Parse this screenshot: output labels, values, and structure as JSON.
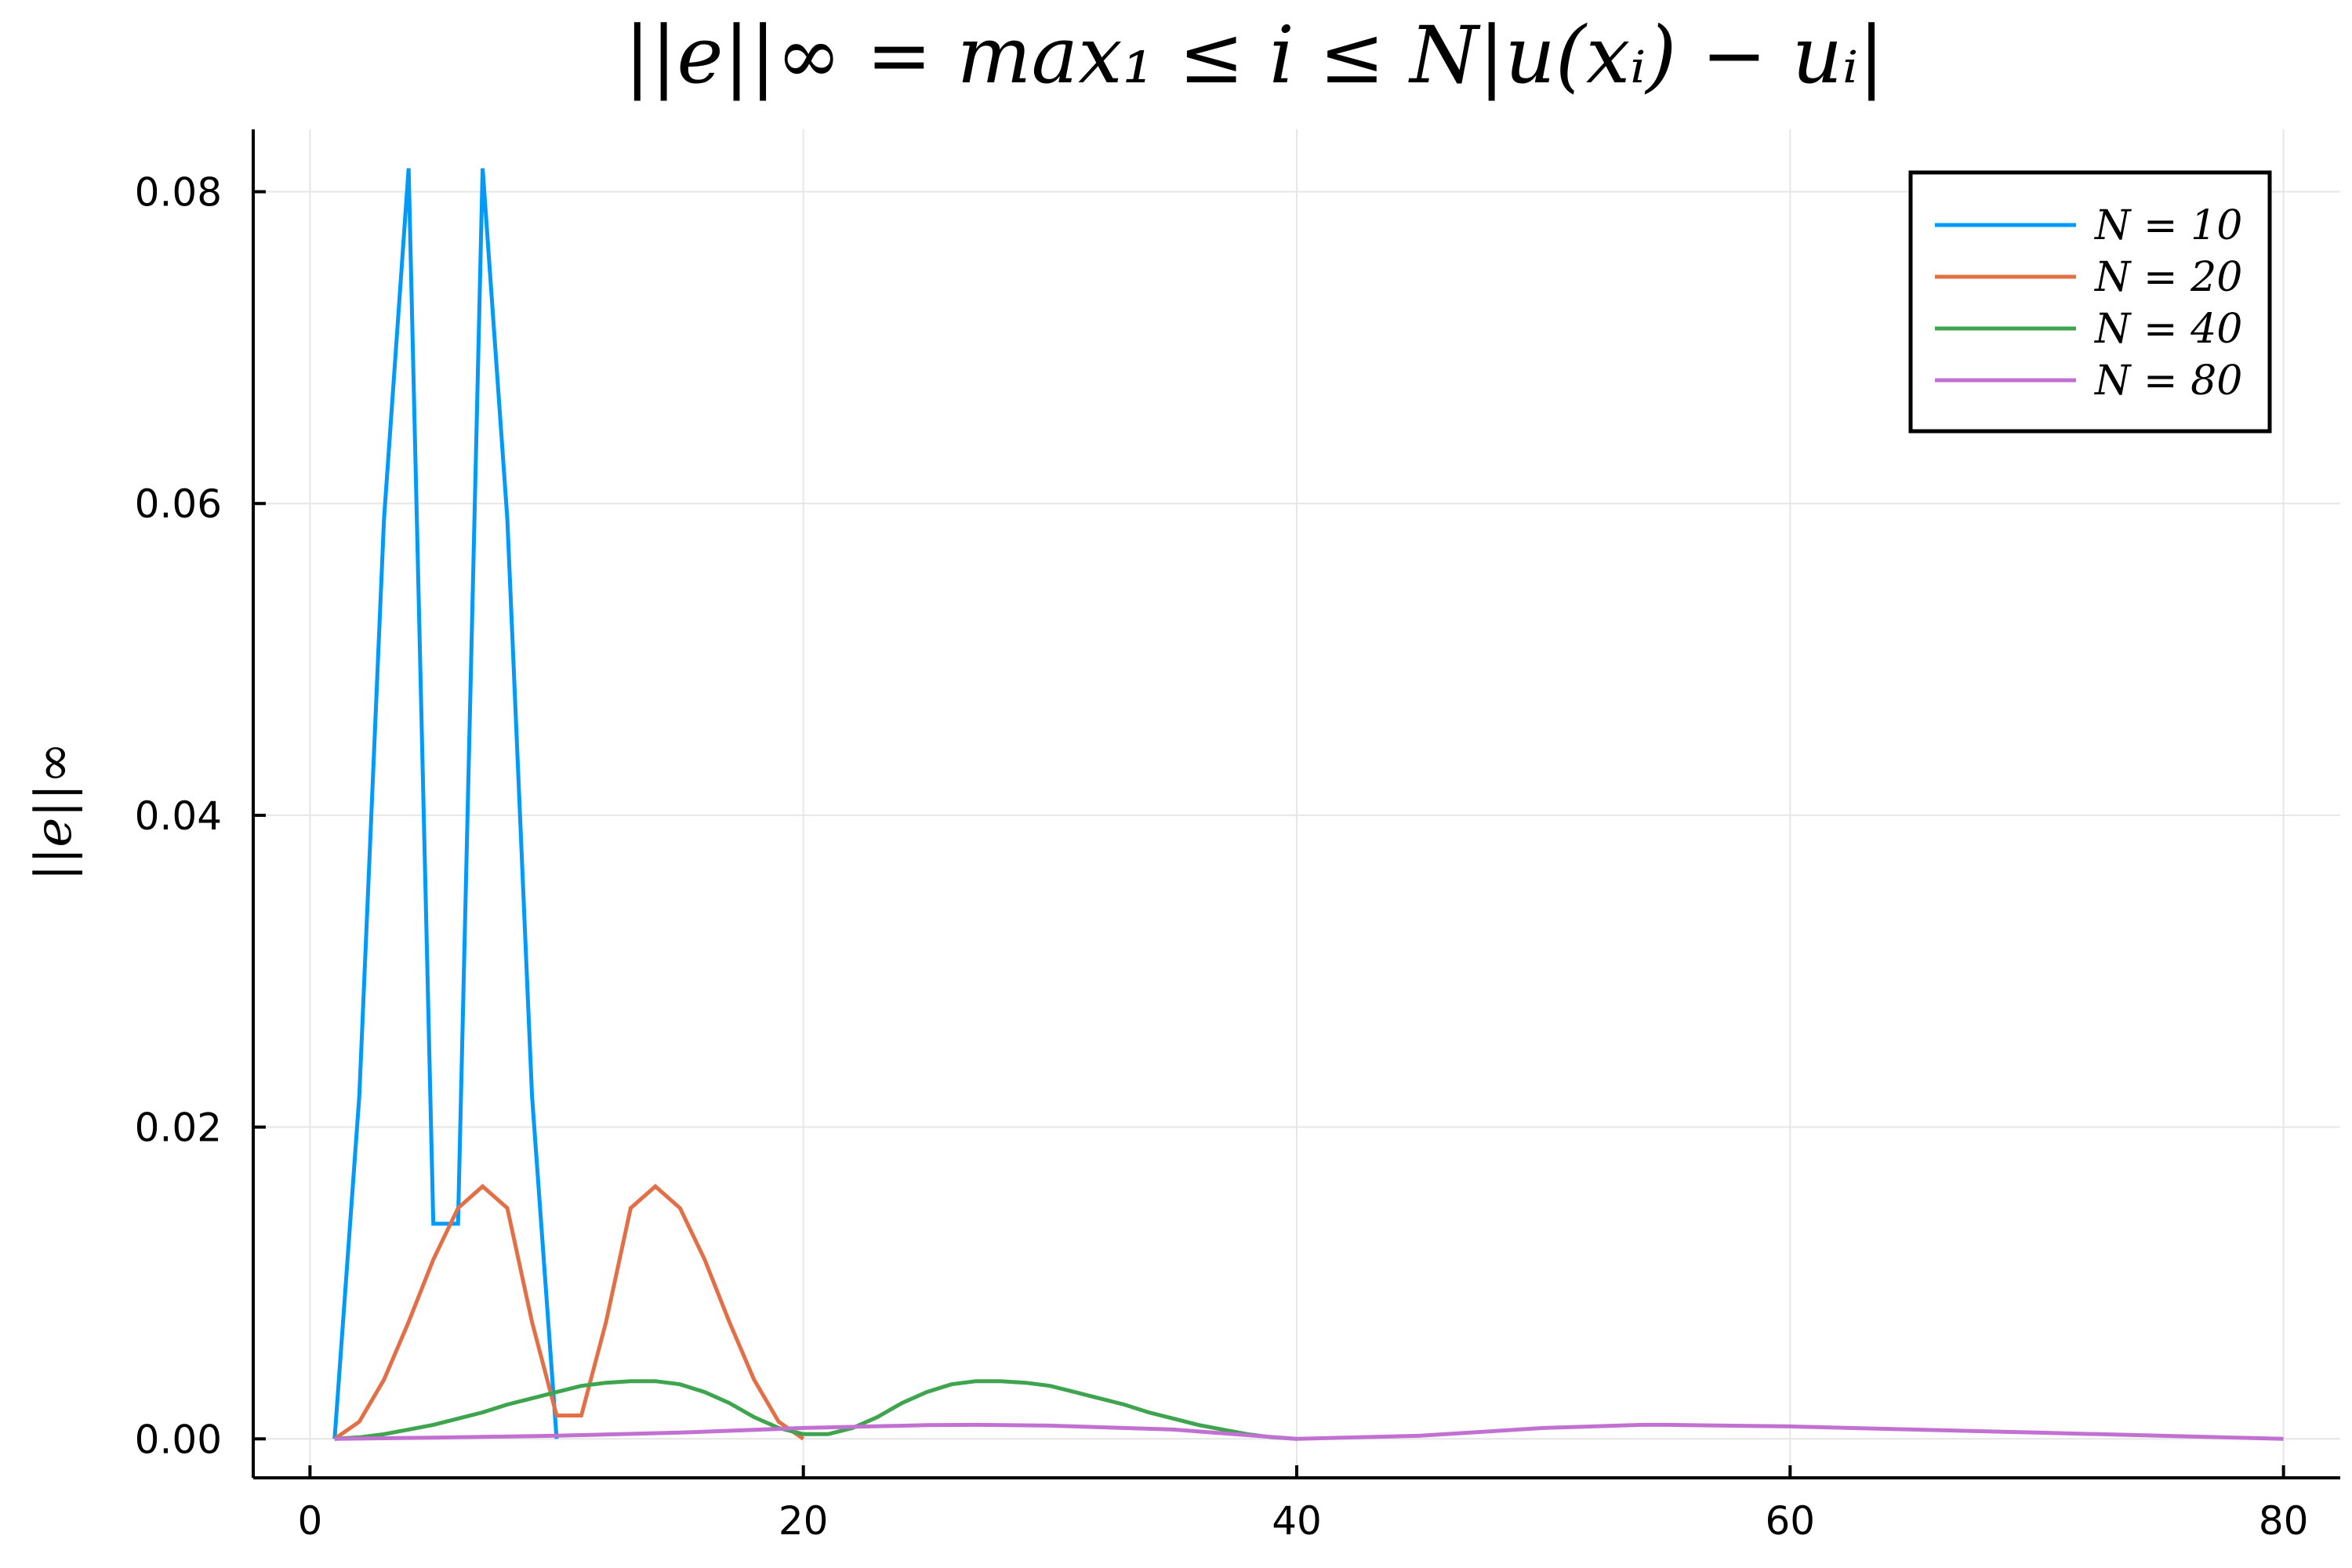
{
  "chart_data": {
    "type": "line",
    "title": "||e||∞ = max₁ ≤ i ≤ N|u(xᵢ) − uᵢ|",
    "xlabel": "",
    "ylabel": "||e||∞",
    "xlim": [
      -2.3,
      82.3
    ],
    "ylim": [
      -0.0025,
      0.084
    ],
    "xticks": [
      0,
      20,
      40,
      60,
      80
    ],
    "xtick_labels": [
      "0",
      "20",
      "40",
      "60",
      "80"
    ],
    "yticks": [
      0.0,
      0.02,
      0.04,
      0.06,
      0.08
    ],
    "ytick_labels": [
      "0.00",
      "0.02",
      "0.04",
      "0.06",
      "0.08"
    ],
    "grid": true,
    "legend_position": "top-right",
    "series": [
      {
        "name": "N = 10",
        "color": "#009AFA",
        "x": [
          1,
          2,
          3,
          4,
          5,
          6,
          7,
          8,
          9,
          10
        ],
        "y": [
          0.0,
          0.022,
          0.059,
          0.0815,
          0.0138,
          0.0138,
          0.0815,
          0.059,
          0.022,
          0.0
        ]
      },
      {
        "name": "N = 20",
        "color": "#E36F47",
        "x": [
          1,
          2,
          3,
          4,
          5,
          6,
          7,
          8,
          9,
          10,
          11,
          12,
          13,
          14,
          15,
          16,
          17,
          18,
          19,
          20
        ],
        "y": [
          0.0,
          0.0011,
          0.0038,
          0.0075,
          0.0115,
          0.0148,
          0.0162,
          0.0148,
          0.0075,
          0.0015,
          0.0015,
          0.0075,
          0.0148,
          0.0162,
          0.0148,
          0.0115,
          0.0075,
          0.0038,
          0.0011,
          0.0
        ]
      },
      {
        "name": "N = 40",
        "color": "#3EA44E",
        "x": [
          1,
          2,
          3,
          4,
          5,
          6,
          7,
          8,
          9,
          10,
          11,
          12,
          13,
          14,
          15,
          16,
          17,
          18,
          19,
          20,
          21,
          22,
          23,
          24,
          25,
          26,
          27,
          28,
          29,
          30,
          31,
          32,
          33,
          34,
          35,
          36,
          37,
          38,
          39,
          40
        ],
        "y": [
          0.0,
          0.0001,
          0.0003,
          0.0006,
          0.0009,
          0.0013,
          0.0017,
          0.0022,
          0.0026,
          0.003,
          0.0034,
          0.0036,
          0.0037,
          0.0037,
          0.0035,
          0.003,
          0.0023,
          0.0014,
          0.0007,
          0.0003,
          0.0003,
          0.0007,
          0.0014,
          0.0023,
          0.003,
          0.0035,
          0.0037,
          0.0037,
          0.0036,
          0.0034,
          0.003,
          0.0026,
          0.0022,
          0.0017,
          0.0013,
          0.0009,
          0.0006,
          0.0003,
          0.0001,
          0.0
        ]
      },
      {
        "name": "N = 80",
        "color": "#C271D2",
        "x": [
          1,
          5,
          10,
          15,
          20,
          25,
          27,
          30,
          35,
          40,
          45,
          50,
          54,
          55,
          60,
          65,
          70,
          75,
          80
        ],
        "y": [
          0.0,
          8e-05,
          0.0002,
          0.0004,
          0.0007,
          0.00088,
          0.0009,
          0.00085,
          0.0006,
          0.0,
          0.0002,
          0.0007,
          0.0009,
          0.0009,
          0.0008,
          0.0006,
          0.0004,
          0.0002,
          0.0
        ]
      }
    ]
  }
}
